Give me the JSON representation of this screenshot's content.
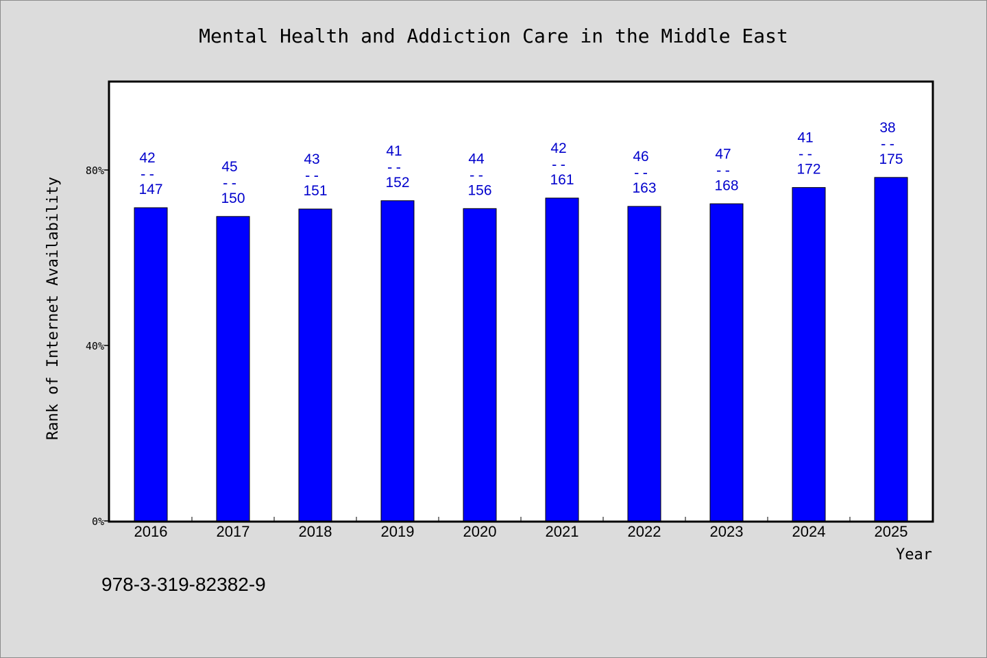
{
  "chart_data": {
    "type": "bar",
    "title": "Mental Health and Addiction Care in the Middle East",
    "xlabel": "Year",
    "ylabel": "Rank of Internet Availability",
    "categories": [
      "2016",
      "2017",
      "2018",
      "2019",
      "2020",
      "2021",
      "2022",
      "2023",
      "2024",
      "2025"
    ],
    "values": [
      71.4,
      69.4,
      71.1,
      73.0,
      71.2,
      73.6,
      71.7,
      72.3,
      76.0,
      78.3
    ],
    "labels": [
      {
        "top": "42",
        "sep": "--",
        "bottom": "147"
      },
      {
        "top": "45",
        "sep": "--",
        "bottom": "150"
      },
      {
        "top": "43",
        "sep": "--",
        "bottom": "151"
      },
      {
        "top": "41",
        "sep": "--",
        "bottom": "152"
      },
      {
        "top": "44",
        "sep": "--",
        "bottom": "156"
      },
      {
        "top": "42",
        "sep": "--",
        "bottom": "161"
      },
      {
        "top": "46",
        "sep": "--",
        "bottom": "163"
      },
      {
        "top": "47",
        "sep": "--",
        "bottom": "168"
      },
      {
        "top": "41",
        "sep": "--",
        "bottom": "172"
      },
      {
        "top": "38",
        "sep": "--",
        "bottom": "175"
      }
    ],
    "yticks": [
      {
        "value": 0,
        "label": "0%"
      },
      {
        "value": 40,
        "label": "40%"
      },
      {
        "value": 80,
        "label": "80%"
      }
    ],
    "ylim": [
      0,
      100
    ],
    "grid": false,
    "bar_color": "#0000ff",
    "label_color": "#0000cc"
  },
  "footnote": "978-3-319-82382-9"
}
